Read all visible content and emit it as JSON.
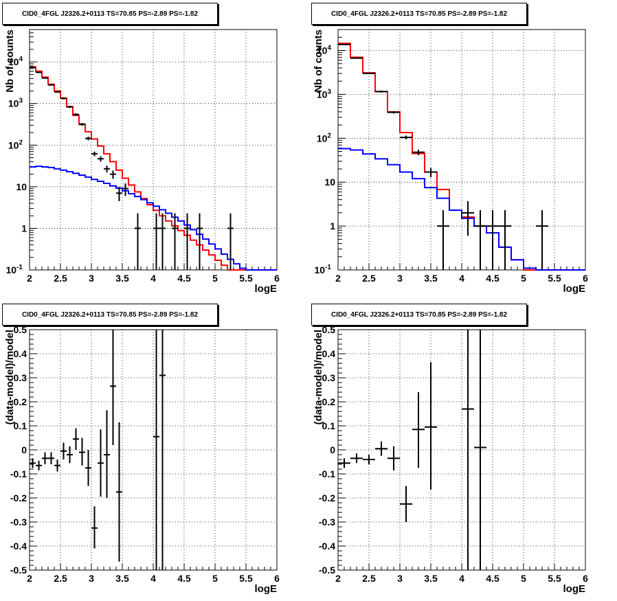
{
  "chart_data": [
    {
      "type": "histogram",
      "title": "CID0_4FGL J2326.2+0113 TS=70.85 PS=-2.89 PS=-1.82",
      "xlabel": "logE",
      "ylabel": "Nb of counts",
      "xlim": [
        2,
        6
      ],
      "ylim": [
        0.1,
        60000
      ],
      "yscale": "log",
      "grid": true,
      "x_ticks": [
        "2",
        "2.5",
        "3",
        "3.5",
        "4",
        "4.5",
        "5",
        "5.5",
        "6"
      ],
      "y_ticks": [
        "10^-1",
        "1",
        "10",
        "10^2",
        "10^3",
        "10^4"
      ],
      "bin_width": 0.1,
      "series": [
        {
          "color": "#ff0000",
          "bin_edges_start": 2.0,
          "values": [
            7600,
            6000,
            4300,
            2900,
            2000,
            1350,
            840,
            520,
            320,
            210,
            140,
            95,
            62,
            40,
            25,
            16,
            11,
            7.5,
            5.2,
            3.7,
            2.7,
            2.0,
            1.5,
            1.15,
            0.88,
            0.68,
            0.52,
            0.4,
            0.3,
            0.23,
            0.17,
            0.13,
            0.1,
            0.1,
            0.1,
            0.1,
            0.1,
            0.1,
            0.1,
            0.1
          ]
        },
        {
          "color": "#0000ff",
          "bin_edges_start": 2.0,
          "values": [
            30,
            31,
            30,
            29,
            27,
            25,
            23,
            21,
            19,
            17,
            15,
            13.5,
            12,
            10.5,
            9.2,
            8,
            6.8,
            5.8,
            4.9,
            4.1,
            3.4,
            2.8,
            2.3,
            1.85,
            1.5,
            1.2,
            0.93,
            0.72,
            0.55,
            0.42,
            0.32,
            0.24,
            0.18,
            0.14,
            0.11,
            0.1,
            0.1,
            0.1,
            0.1,
            0.1
          ]
        }
      ],
      "points": [
        {
          "x": 2.05,
          "y": 7300,
          "lo": 7150,
          "hi": 7450
        },
        {
          "x": 2.15,
          "y": 5600,
          "lo": 5450,
          "hi": 5750
        },
        {
          "x": 2.25,
          "y": 4100,
          "lo": 3980,
          "hi": 4220
        },
        {
          "x": 2.35,
          "y": 2800,
          "lo": 2700,
          "hi": 2900
        },
        {
          "x": 2.45,
          "y": 1900,
          "lo": 1820,
          "hi": 1980
        },
        {
          "x": 2.55,
          "y": 1330,
          "lo": 1260,
          "hi": 1400
        },
        {
          "x": 2.65,
          "y": 830,
          "lo": 780,
          "hi": 880
        },
        {
          "x": 2.75,
          "y": 545,
          "lo": 505,
          "hi": 585
        },
        {
          "x": 2.85,
          "y": 315,
          "lo": 290,
          "hi": 340
        },
        {
          "x": 2.95,
          "y": 145,
          "lo": 130,
          "hi": 160
        },
        {
          "x": 3.05,
          "y": 62,
          "lo": 54,
          "hi": 70
        },
        {
          "x": 3.15,
          "y": 47,
          "lo": 40,
          "hi": 54
        },
        {
          "x": 3.25,
          "y": 27,
          "lo": 22,
          "hi": 32
        },
        {
          "x": 3.35,
          "y": 20,
          "lo": 15.5,
          "hi": 24.5
        },
        {
          "x": 3.45,
          "y": 7,
          "lo": 4.5,
          "hi": 10
        },
        {
          "x": 3.55,
          "y": 9,
          "lo": 6,
          "hi": 12
        },
        {
          "x": 3.75,
          "y": 1,
          "lo": 0.1,
          "hi": 2.3
        },
        {
          "x": 4.05,
          "y": 1,
          "lo": 0.1,
          "hi": 2.3
        },
        {
          "x": 4.15,
          "y": 1,
          "lo": 0.1,
          "hi": 2.3
        },
        {
          "x": 4.35,
          "y": 1,
          "lo": 0.1,
          "hi": 2.3
        },
        {
          "x": 4.55,
          "y": 1,
          "lo": 0.1,
          "hi": 2.3
        },
        {
          "x": 4.75,
          "y": 1,
          "lo": 0.1,
          "hi": 2.3
        },
        {
          "x": 5.25,
          "y": 1,
          "lo": 0.1,
          "hi": 2.3
        }
      ]
    },
    {
      "type": "histogram",
      "title": "CID0_4FGL J2326.2+0113 TS=70.85 PS=-2.89 PS=-1.82",
      "xlabel": "logE",
      "ylabel": "Nb of counts",
      "xlim": [
        2,
        6
      ],
      "ylim": [
        0.1,
        30000
      ],
      "yscale": "log",
      "grid": true,
      "x_ticks": [
        "2",
        "2.5",
        "3",
        "3.5",
        "4",
        "4.5",
        "5",
        "5.5",
        "6"
      ],
      "y_ticks": [
        "10^-1",
        "1",
        "10",
        "10^2",
        "10^3",
        "10^4"
      ],
      "bin_width": 0.2,
      "series": [
        {
          "color": "#ff0000",
          "bin_edges_start": 2.0,
          "values": [
            14500,
            7000,
            3100,
            1150,
            400,
            135,
            45,
            17,
            6.8,
            2.3,
            1.6,
            1.0,
            0.7,
            0.33,
            0.17,
            0.1,
            0.1,
            0.1,
            0.1,
            0.1
          ]
        },
        {
          "color": "#0000ff",
          "bin_edges_start": 2.0,
          "values": [
            58,
            54,
            44,
            34,
            25,
            17,
            12,
            7.5,
            4.3,
            2.3,
            1.5,
            1.0,
            0.7,
            0.33,
            0.17,
            0.11,
            0.1,
            0.1,
            0.1,
            0.1
          ]
        }
      ],
      "points": [
        {
          "x": 2.1,
          "y": 13700,
          "lo": 13500,
          "hi": 13900
        },
        {
          "x": 2.3,
          "y": 6700,
          "lo": 6550,
          "hi": 6850
        },
        {
          "x": 2.5,
          "y": 3000,
          "lo": 2900,
          "hi": 3100
        },
        {
          "x": 2.7,
          "y": 1160,
          "lo": 1100,
          "hi": 1220
        },
        {
          "x": 2.9,
          "y": 390,
          "lo": 365,
          "hi": 415
        },
        {
          "x": 3.1,
          "y": 105,
          "lo": 95,
          "hi": 115
        },
        {
          "x": 3.3,
          "y": 48,
          "lo": 41,
          "hi": 55
        },
        {
          "x": 3.5,
          "y": 17,
          "lo": 13,
          "hi": 21
        },
        {
          "x": 3.7,
          "y": 1,
          "lo": 0.1,
          "hi": 2.3
        },
        {
          "x": 4.1,
          "y": 2,
          "lo": 0.6,
          "hi": 3.7
        },
        {
          "x": 4.3,
          "y": 1,
          "lo": 0.1,
          "hi": 2.3
        },
        {
          "x": 4.5,
          "y": 1,
          "lo": 0.1,
          "hi": 2.3
        },
        {
          "x": 4.7,
          "y": 1,
          "lo": 0.1,
          "hi": 2.3
        },
        {
          "x": 5.3,
          "y": 1,
          "lo": 0.1,
          "hi": 2.3
        }
      ]
    },
    {
      "type": "scatter",
      "title": "CID0_4FGL J2326.2+0113 TS=70.85 PS=-2.89 PS=-1.82",
      "xlabel": "logE",
      "ylabel": "(data-model)/model",
      "xlim": [
        2,
        6
      ],
      "ylim": [
        -0.5,
        0.5
      ],
      "grid": true,
      "x_ticks": [
        "2",
        "2.5",
        "3",
        "3.5",
        "4",
        "4.5",
        "5",
        "5.5",
        "6"
      ],
      "y_ticks": [
        "-0.5",
        "-0.4",
        "-0.3",
        "-0.2",
        "-0.1",
        "0",
        "0.1",
        "0.2",
        "0.3",
        "0.4",
        "0.5"
      ],
      "bin_width": 0.1,
      "points": [
        {
          "x": 2.05,
          "y": -0.055,
          "lo": -0.075,
          "hi": -0.035
        },
        {
          "x": 2.15,
          "y": -0.065,
          "lo": -0.085,
          "hi": -0.045
        },
        {
          "x": 2.25,
          "y": -0.035,
          "lo": -0.06,
          "hi": -0.01
        },
        {
          "x": 2.35,
          "y": -0.035,
          "lo": -0.06,
          "hi": -0.01
        },
        {
          "x": 2.45,
          "y": -0.065,
          "lo": -0.09,
          "hi": -0.04
        },
        {
          "x": 2.55,
          "y": -0.005,
          "lo": -0.04,
          "hi": 0.03
        },
        {
          "x": 2.65,
          "y": -0.02,
          "lo": -0.055,
          "hi": 0.015
        },
        {
          "x": 2.75,
          "y": 0.045,
          "lo": 0.0,
          "hi": 0.09
        },
        {
          "x": 2.85,
          "y": -0.01,
          "lo": -0.065,
          "hi": 0.05
        },
        {
          "x": 2.95,
          "y": -0.075,
          "lo": -0.15,
          "hi": 0.0
        },
        {
          "x": 3.05,
          "y": -0.325,
          "lo": -0.41,
          "hi": -0.235
        },
        {
          "x": 3.15,
          "y": -0.055,
          "lo": -0.195,
          "hi": 0.085
        },
        {
          "x": 3.25,
          "y": -0.02,
          "lo": -0.2,
          "hi": 0.165
        },
        {
          "x": 3.35,
          "y": 0.265,
          "lo": 0.02,
          "hi": 0.5
        },
        {
          "x": 3.45,
          "y": -0.175,
          "lo": -0.465,
          "hi": 0.115
        },
        {
          "x": 4.05,
          "y": 0.055,
          "lo": -0.5,
          "hi": 0.5
        },
        {
          "x": 4.15,
          "y": 0.31,
          "lo": -0.5,
          "hi": 0.5
        }
      ]
    },
    {
      "type": "scatter",
      "title": "CID0_4FGL J2326.2+0113 TS=70.85 PS=-2.89 PS=-1.82",
      "xlabel": "logE",
      "ylabel": "(data-model)/model",
      "xlim": [
        2,
        6
      ],
      "ylim": [
        -0.5,
        0.5
      ],
      "grid": true,
      "x_ticks": [
        "2",
        "2.5",
        "3",
        "3.5",
        "4",
        "4.5",
        "5",
        "5.5",
        "6"
      ],
      "y_ticks": [
        "-0.5",
        "-0.4",
        "-0.3",
        "-0.2",
        "-0.1",
        "0",
        "0.1",
        "0.2",
        "0.3",
        "0.4",
        "0.5"
      ],
      "bin_width": 0.2,
      "points": [
        {
          "x": 2.1,
          "y": -0.055,
          "lo": -0.075,
          "hi": -0.035
        },
        {
          "x": 2.3,
          "y": -0.035,
          "lo": -0.055,
          "hi": -0.015
        },
        {
          "x": 2.5,
          "y": -0.04,
          "lo": -0.06,
          "hi": -0.02
        },
        {
          "x": 2.7,
          "y": 0.005,
          "lo": -0.025,
          "hi": 0.035
        },
        {
          "x": 2.9,
          "y": -0.035,
          "lo": -0.085,
          "hi": 0.015
        },
        {
          "x": 3.1,
          "y": -0.225,
          "lo": -0.3,
          "hi": -0.15
        },
        {
          "x": 3.3,
          "y": 0.085,
          "lo": -0.075,
          "hi": 0.24
        },
        {
          "x": 3.5,
          "y": 0.095,
          "lo": -0.165,
          "hi": 0.365
        },
        {
          "x": 4.1,
          "y": 0.17,
          "lo": -0.5,
          "hi": 0.5
        },
        {
          "x": 4.3,
          "y": 0.01,
          "lo": -0.5,
          "hi": 0.5
        }
      ]
    }
  ]
}
